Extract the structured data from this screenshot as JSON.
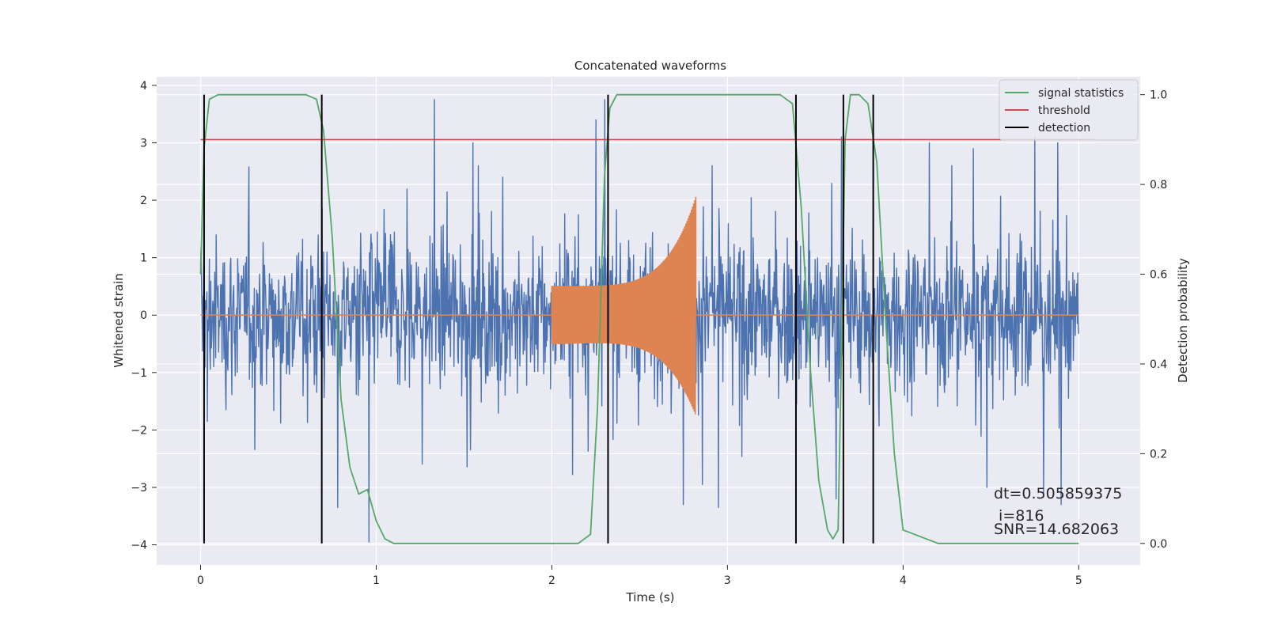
{
  "chart_data": {
    "type": "line",
    "title": "Concatenated waveforms",
    "xlabel": "Time (s)",
    "ylabel": "Whitened strain",
    "y2label": "Detection probability",
    "xlim": [
      -0.25,
      5.35
    ],
    "ylim": [
      -4.35,
      4.15
    ],
    "y2lim": [
      -0.048,
      1.04
    ],
    "x_ticks": [
      0,
      1,
      2,
      3,
      4,
      5
    ],
    "y_ticks": [
      -4,
      -3,
      -2,
      -1,
      0,
      1,
      2,
      3,
      4
    ],
    "y2_ticks": [
      0.0,
      0.2,
      0.4,
      0.6,
      0.8,
      1.0
    ],
    "y2_tick_labels": [
      "0.0",
      "0.2",
      "0.4",
      "0.6",
      "0.8",
      "1.0"
    ],
    "grid": true,
    "legend_position": "top-right",
    "colors": {
      "strain": "#4c72b0",
      "injection": "#dd8452",
      "signal": "#55a868",
      "threshold": "#c44e52",
      "detection": "#000000",
      "background": "#eaeaf2",
      "grid": "#ffffff"
    },
    "series": [
      {
        "name": "signal statistics",
        "axis": "right",
        "x": [
          0.0,
          0.02,
          0.05,
          0.1,
          0.2,
          0.6,
          0.66,
          0.7,
          0.75,
          0.8,
          0.85,
          0.9,
          0.95,
          1.0,
          1.05,
          1.1,
          1.3,
          2.0,
          2.15,
          2.22,
          2.26,
          2.3,
          2.33,
          2.37,
          2.5,
          3.3,
          3.37,
          3.42,
          3.47,
          3.52,
          3.57,
          3.6,
          3.63,
          3.65,
          3.67,
          3.7,
          3.75,
          3.8,
          3.85,
          3.9,
          3.95,
          4.0,
          4.2,
          5.0
        ],
        "values": [
          0.6,
          0.88,
          0.99,
          1.0,
          1.0,
          1.0,
          0.99,
          0.92,
          0.68,
          0.32,
          0.17,
          0.11,
          0.12,
          0.05,
          0.01,
          0.0,
          0.0,
          0.0,
          0.0,
          0.02,
          0.3,
          0.82,
          0.97,
          1.0,
          1.0,
          1.0,
          0.98,
          0.75,
          0.4,
          0.14,
          0.03,
          0.01,
          0.03,
          0.45,
          0.9,
          1.0,
          1.0,
          0.98,
          0.85,
          0.5,
          0.2,
          0.03,
          0.0,
          0.0
        ]
      },
      {
        "name": "threshold",
        "axis": "right",
        "x": [
          0.0,
          5.1
        ],
        "values": [
          0.9,
          0.9
        ]
      },
      {
        "name": "detection",
        "axis": "right",
        "x": [
          0.02,
          0.69,
          2.32,
          3.39,
          3.66,
          3.83
        ],
        "values": [
          [
            0.0,
            1.0
          ],
          [
            0.0,
            1.0
          ],
          [
            0.0,
            1.0
          ],
          [
            0.0,
            1.0
          ],
          [
            0.0,
            1.0
          ],
          [
            0.0,
            1.0
          ]
        ]
      },
      {
        "name": "whitened strain",
        "axis": "left",
        "x_range": [
          0.0,
          5.0
        ],
        "amplitude_envelope": 2.5,
        "peak_spikes": [
          [
            0.02,
            1.95
          ],
          [
            0.04,
            -1.85
          ],
          [
            0.7,
            1.1
          ],
          [
            0.96,
            -3.95
          ],
          [
            0.78,
            -3.35
          ],
          [
            1.33,
            3.75
          ],
          [
            1.55,
            3.0
          ],
          [
            1.72,
            2.4
          ],
          [
            2.25,
            3.4
          ],
          [
            2.3,
            3.75
          ],
          [
            2.75,
            -3.3
          ],
          [
            2.95,
            -3.35
          ],
          [
            3.62,
            -3.2
          ],
          [
            3.65,
            3.1
          ],
          [
            4.15,
            3.0
          ],
          [
            4.4,
            2.9
          ],
          [
            4.75,
            3.1
          ],
          [
            4.8,
            -3.1
          ],
          [
            4.88,
            3.0
          ],
          [
            4.9,
            -3.3
          ]
        ]
      },
      {
        "name": "injection",
        "axis": "left",
        "x_range": [
          2.0,
          2.82
        ],
        "start_amplitude": 0.5,
        "peak_amplitude": 2.05,
        "tail_end": 3.0
      }
    ],
    "annotations": [
      "dt=0.505859375",
      " i=816",
      "SNR=14.682063"
    ]
  }
}
